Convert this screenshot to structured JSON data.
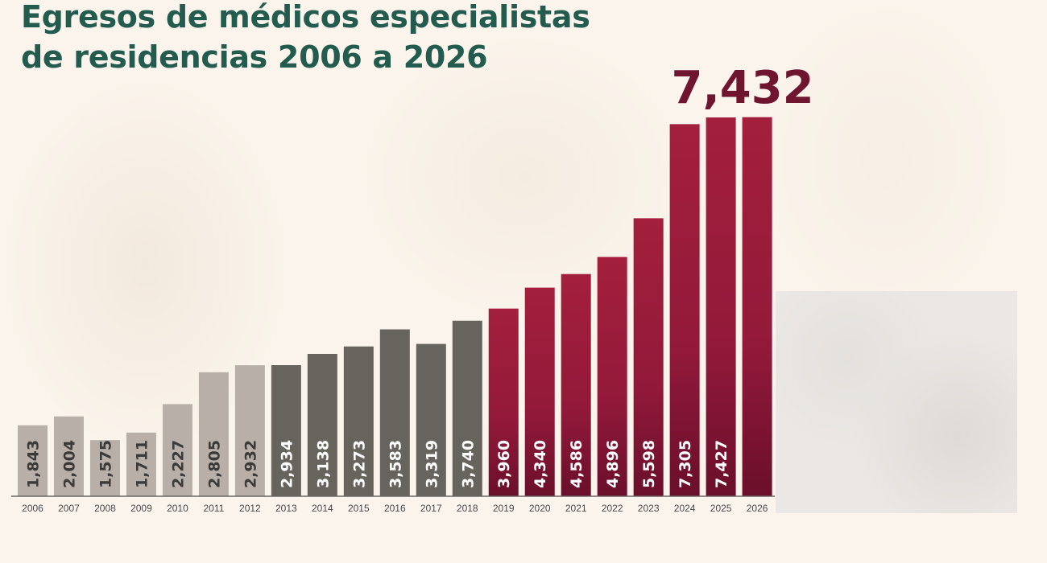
{
  "chart_data": {
    "type": "bar",
    "title": "Egresos de médicos especialistas de residencias 2006 a 2026",
    "title_lines": [
      "Egresos de médicos especialistas",
      "de residencias 2006 a 2026"
    ],
    "xlabel": "",
    "ylabel": "",
    "ylim": [
      600,
      7500
    ],
    "grid": false,
    "categories": [
      "2006",
      "2007",
      "2008",
      "2009",
      "2010",
      "2011",
      "2012",
      "2013",
      "2014",
      "2015",
      "2016",
      "2017",
      "2018",
      "2019",
      "2020",
      "2021",
      "2022",
      "2023",
      "2024",
      "2025",
      "2026"
    ],
    "values": [
      1843,
      2004,
      1575,
      1711,
      2227,
      2805,
      2932,
      2934,
      3138,
      3273,
      3583,
      3319,
      3740,
      3960,
      4340,
      4586,
      4896,
      5598,
      7305,
      7427,
      7432
    ],
    "value_labels": [
      "1,843",
      "2,004",
      "1,575",
      "1,711",
      "2,227",
      "2,805",
      "2,932",
      "2,934",
      "3,138",
      "3,273",
      "3,583",
      "3,319",
      "3,740",
      "3,960",
      "4,340",
      "4,586",
      "4,896",
      "5,598",
      "7,305",
      "7,427",
      ""
    ],
    "highlight_label": "7,432",
    "groups": [
      {
        "from": "2006",
        "to": "2012",
        "color": "#b7afa8",
        "label_color": "#3b3a38"
      },
      {
        "from": "2013",
        "to": "2018",
        "color": "#67635d",
        "label_color": "#ffffff"
      },
      {
        "from": "2019",
        "to": "2026",
        "color": "#a01f3c",
        "color_dark": "#6a0f2b",
        "label_color": "#ffffff"
      }
    ],
    "highlight_color": "#6f1530",
    "title_color": "#235b4e"
  }
}
